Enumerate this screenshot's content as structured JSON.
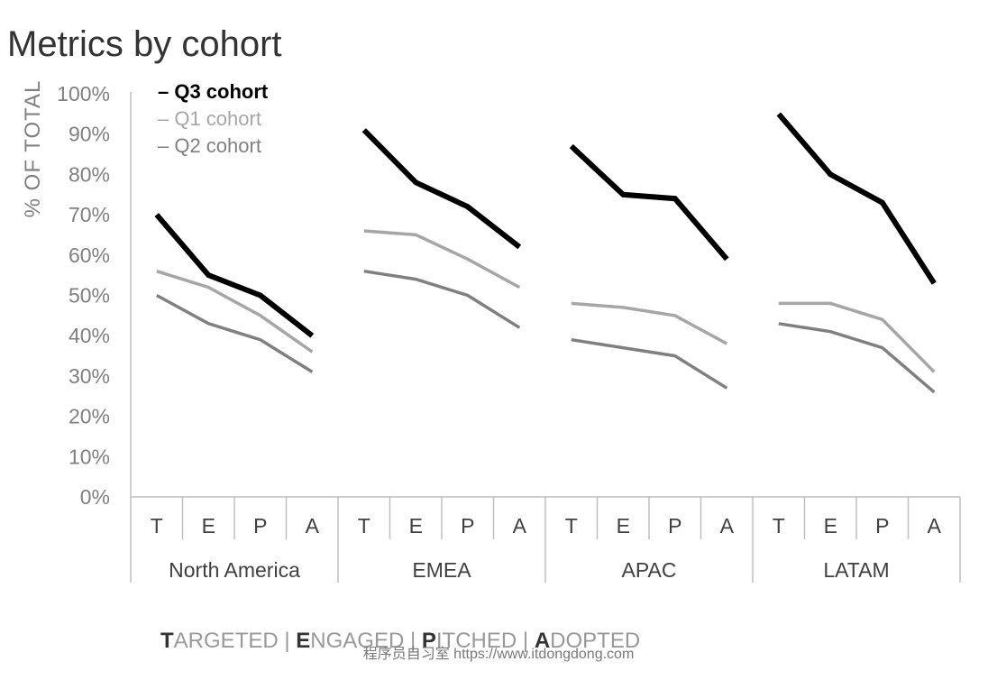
{
  "chart_data": {
    "type": "line",
    "title": "Metrics by cohort",
    "ylabel": "% OF TOTAL",
    "ylim": [
      0,
      100
    ],
    "yticks": [
      "0%",
      "10%",
      "20%",
      "30%",
      "40%",
      "50%",
      "60%",
      "70%",
      "80%",
      "90%",
      "100%"
    ],
    "stage_labels": [
      "T",
      "E",
      "P",
      "A"
    ],
    "groups": [
      "North America",
      "EMEA",
      "APAC",
      "LATAM"
    ],
    "legend_position": "top-left",
    "grid": false,
    "series": [
      {
        "name": "Q3 cohort",
        "color": "#000000",
        "bold": true,
        "values": [
          [
            70,
            55,
            50,
            40
          ],
          [
            91,
            78,
            72,
            62
          ],
          [
            87,
            75,
            74,
            59
          ],
          [
            95,
            80,
            73,
            53
          ]
        ]
      },
      {
        "name": "Q1 cohort",
        "color": "#a6a6a6",
        "bold": false,
        "values": [
          [
            56,
            52,
            45,
            36
          ],
          [
            66,
            65,
            59,
            52
          ],
          [
            48,
            47,
            45,
            38
          ],
          [
            48,
            48,
            44,
            31
          ]
        ]
      },
      {
        "name": "Q2 cohort",
        "color": "#808080",
        "bold": false,
        "values": [
          [
            50,
            43,
            39,
            31
          ],
          [
            56,
            54,
            50,
            42
          ],
          [
            39,
            37,
            35,
            27
          ],
          [
            43,
            41,
            37,
            26
          ]
        ]
      }
    ]
  },
  "footer": {
    "parts": [
      {
        "initial": "T",
        "rest": "ARGETED"
      },
      {
        "initial": "E",
        "rest": "NGAGED"
      },
      {
        "initial": "P",
        "rest": "ITCHED"
      },
      {
        "initial": "A",
        "rest": "DOPTED"
      }
    ],
    "separator": " | "
  },
  "watermark": "程序员自习室 https://www.itdongdong.com"
}
